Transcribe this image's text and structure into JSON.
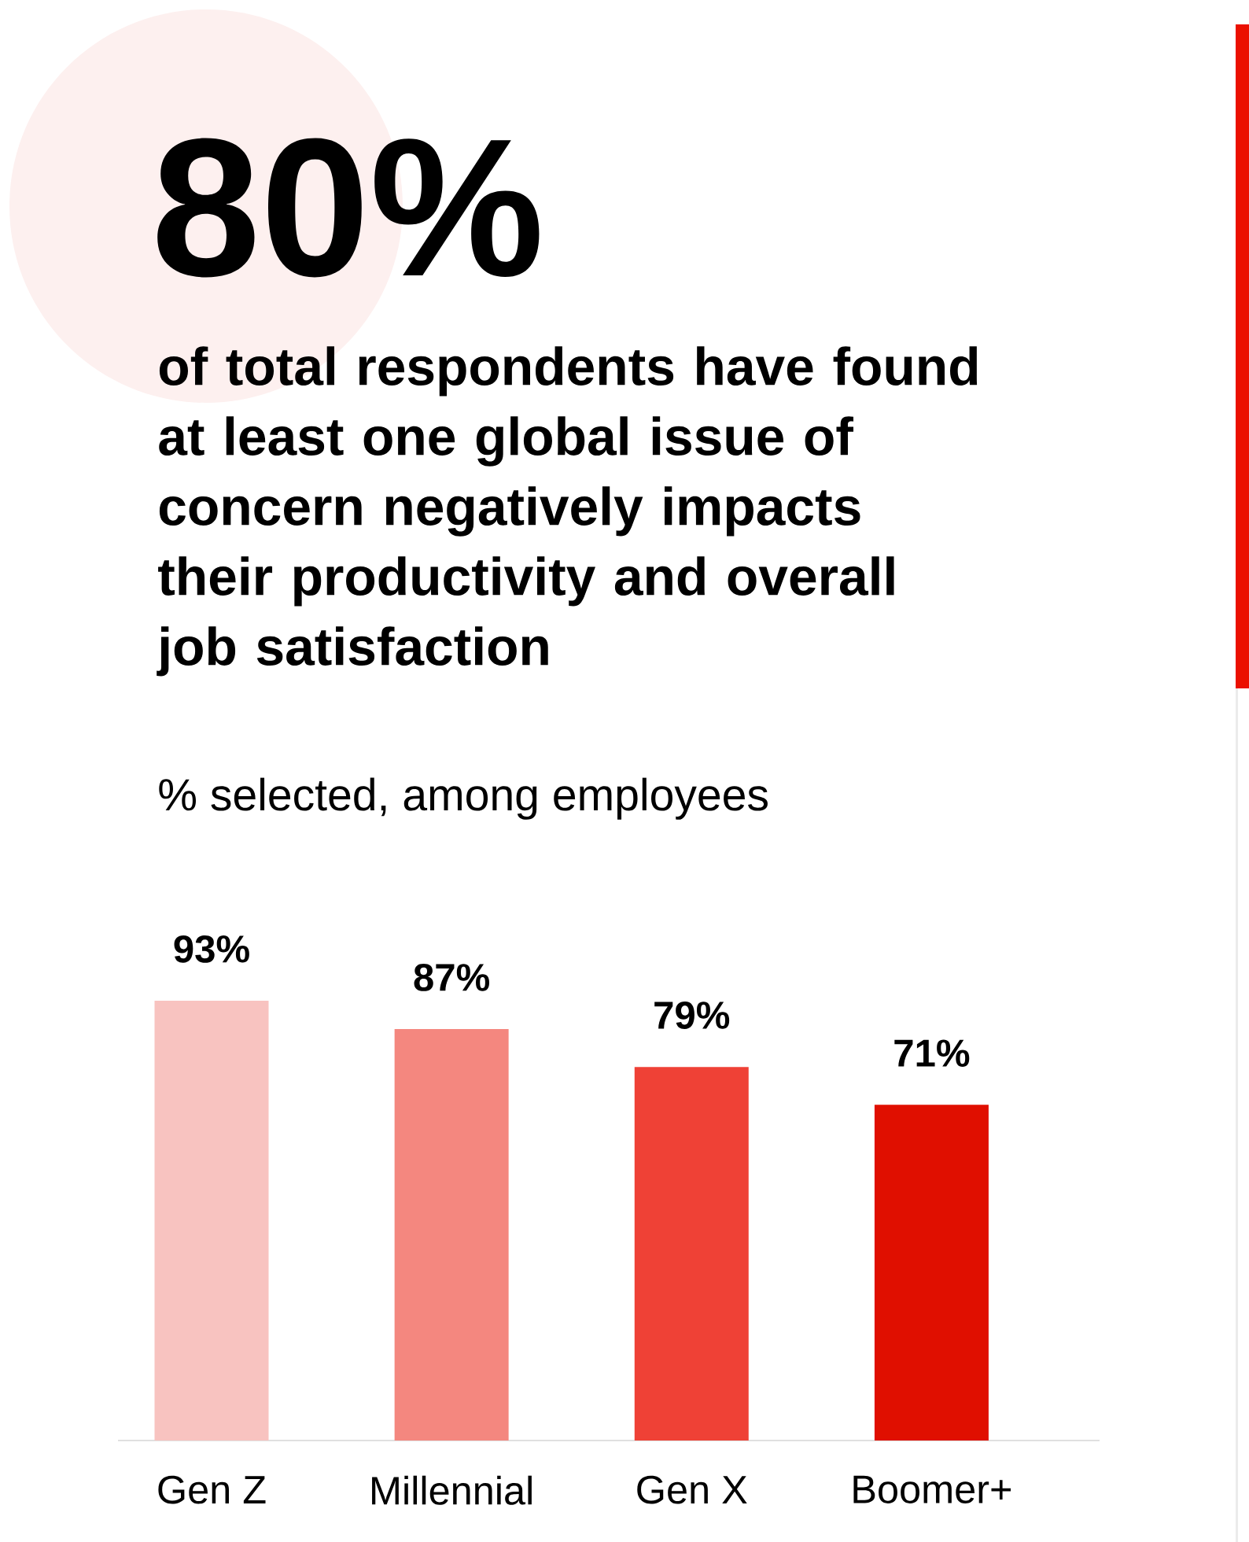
{
  "chart_data": {
    "type": "bar",
    "title": "80%",
    "subtitle": "of total respondents have found at least one global issue of concern negatively impacts their productivity and overall job satisfaction",
    "ylabel": "% selected, among employees",
    "categories": [
      "Gen Z",
      "Millennial",
      "Gen X",
      "Boomer+"
    ],
    "values": [
      93,
      87,
      79,
      71
    ],
    "value_labels": [
      "93%",
      "87%",
      "79%",
      "71%"
    ],
    "colors": [
      "#f8c3c0",
      "#f4877f",
      "#ef4136",
      "#e00f00"
    ]
  }
}
